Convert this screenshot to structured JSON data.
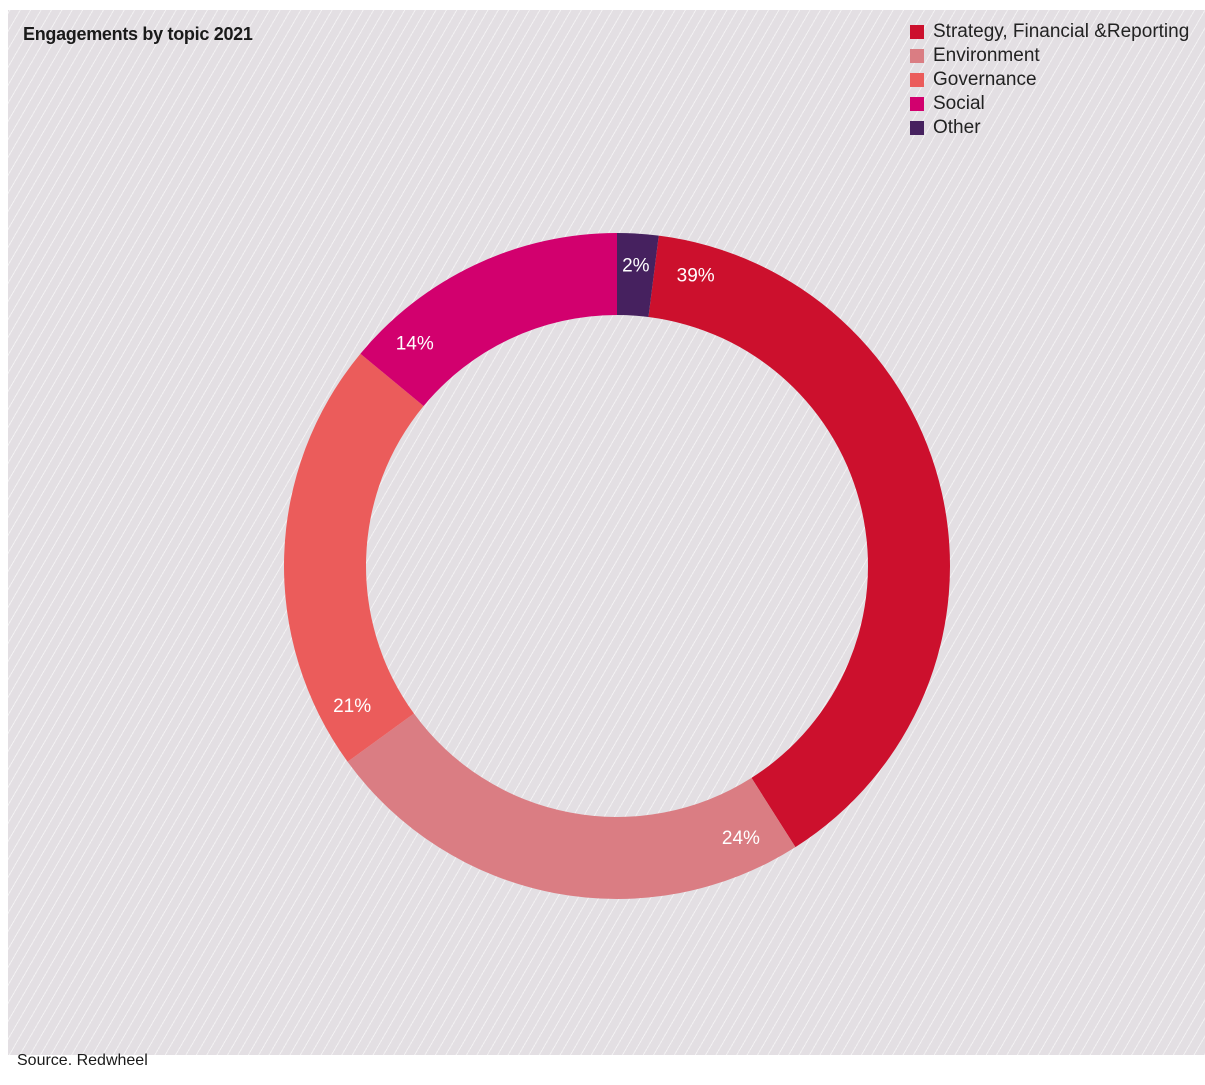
{
  "chart_data": {
    "type": "pie",
    "title": "Engagements by topic 2021",
    "source": "Source. Redwheel",
    "legend_position": "top-right",
    "series": [
      {
        "name": "Strategy, Financial &Reporting",
        "value": 39,
        "label": "39%",
        "color": "#cc102d"
      },
      {
        "name": "Environment",
        "value": 24,
        "label": "24%",
        "color": "#da7d83"
      },
      {
        "name": "Governance",
        "value": 21,
        "label": "21%",
        "color": "#eb5c5b"
      },
      {
        "name": "Social",
        "value": 14,
        "label": "14%",
        "color": "#d2006e"
      },
      {
        "name": "Other",
        "value": 2,
        "label": "2%",
        "color": "#46215f"
      }
    ]
  }
}
